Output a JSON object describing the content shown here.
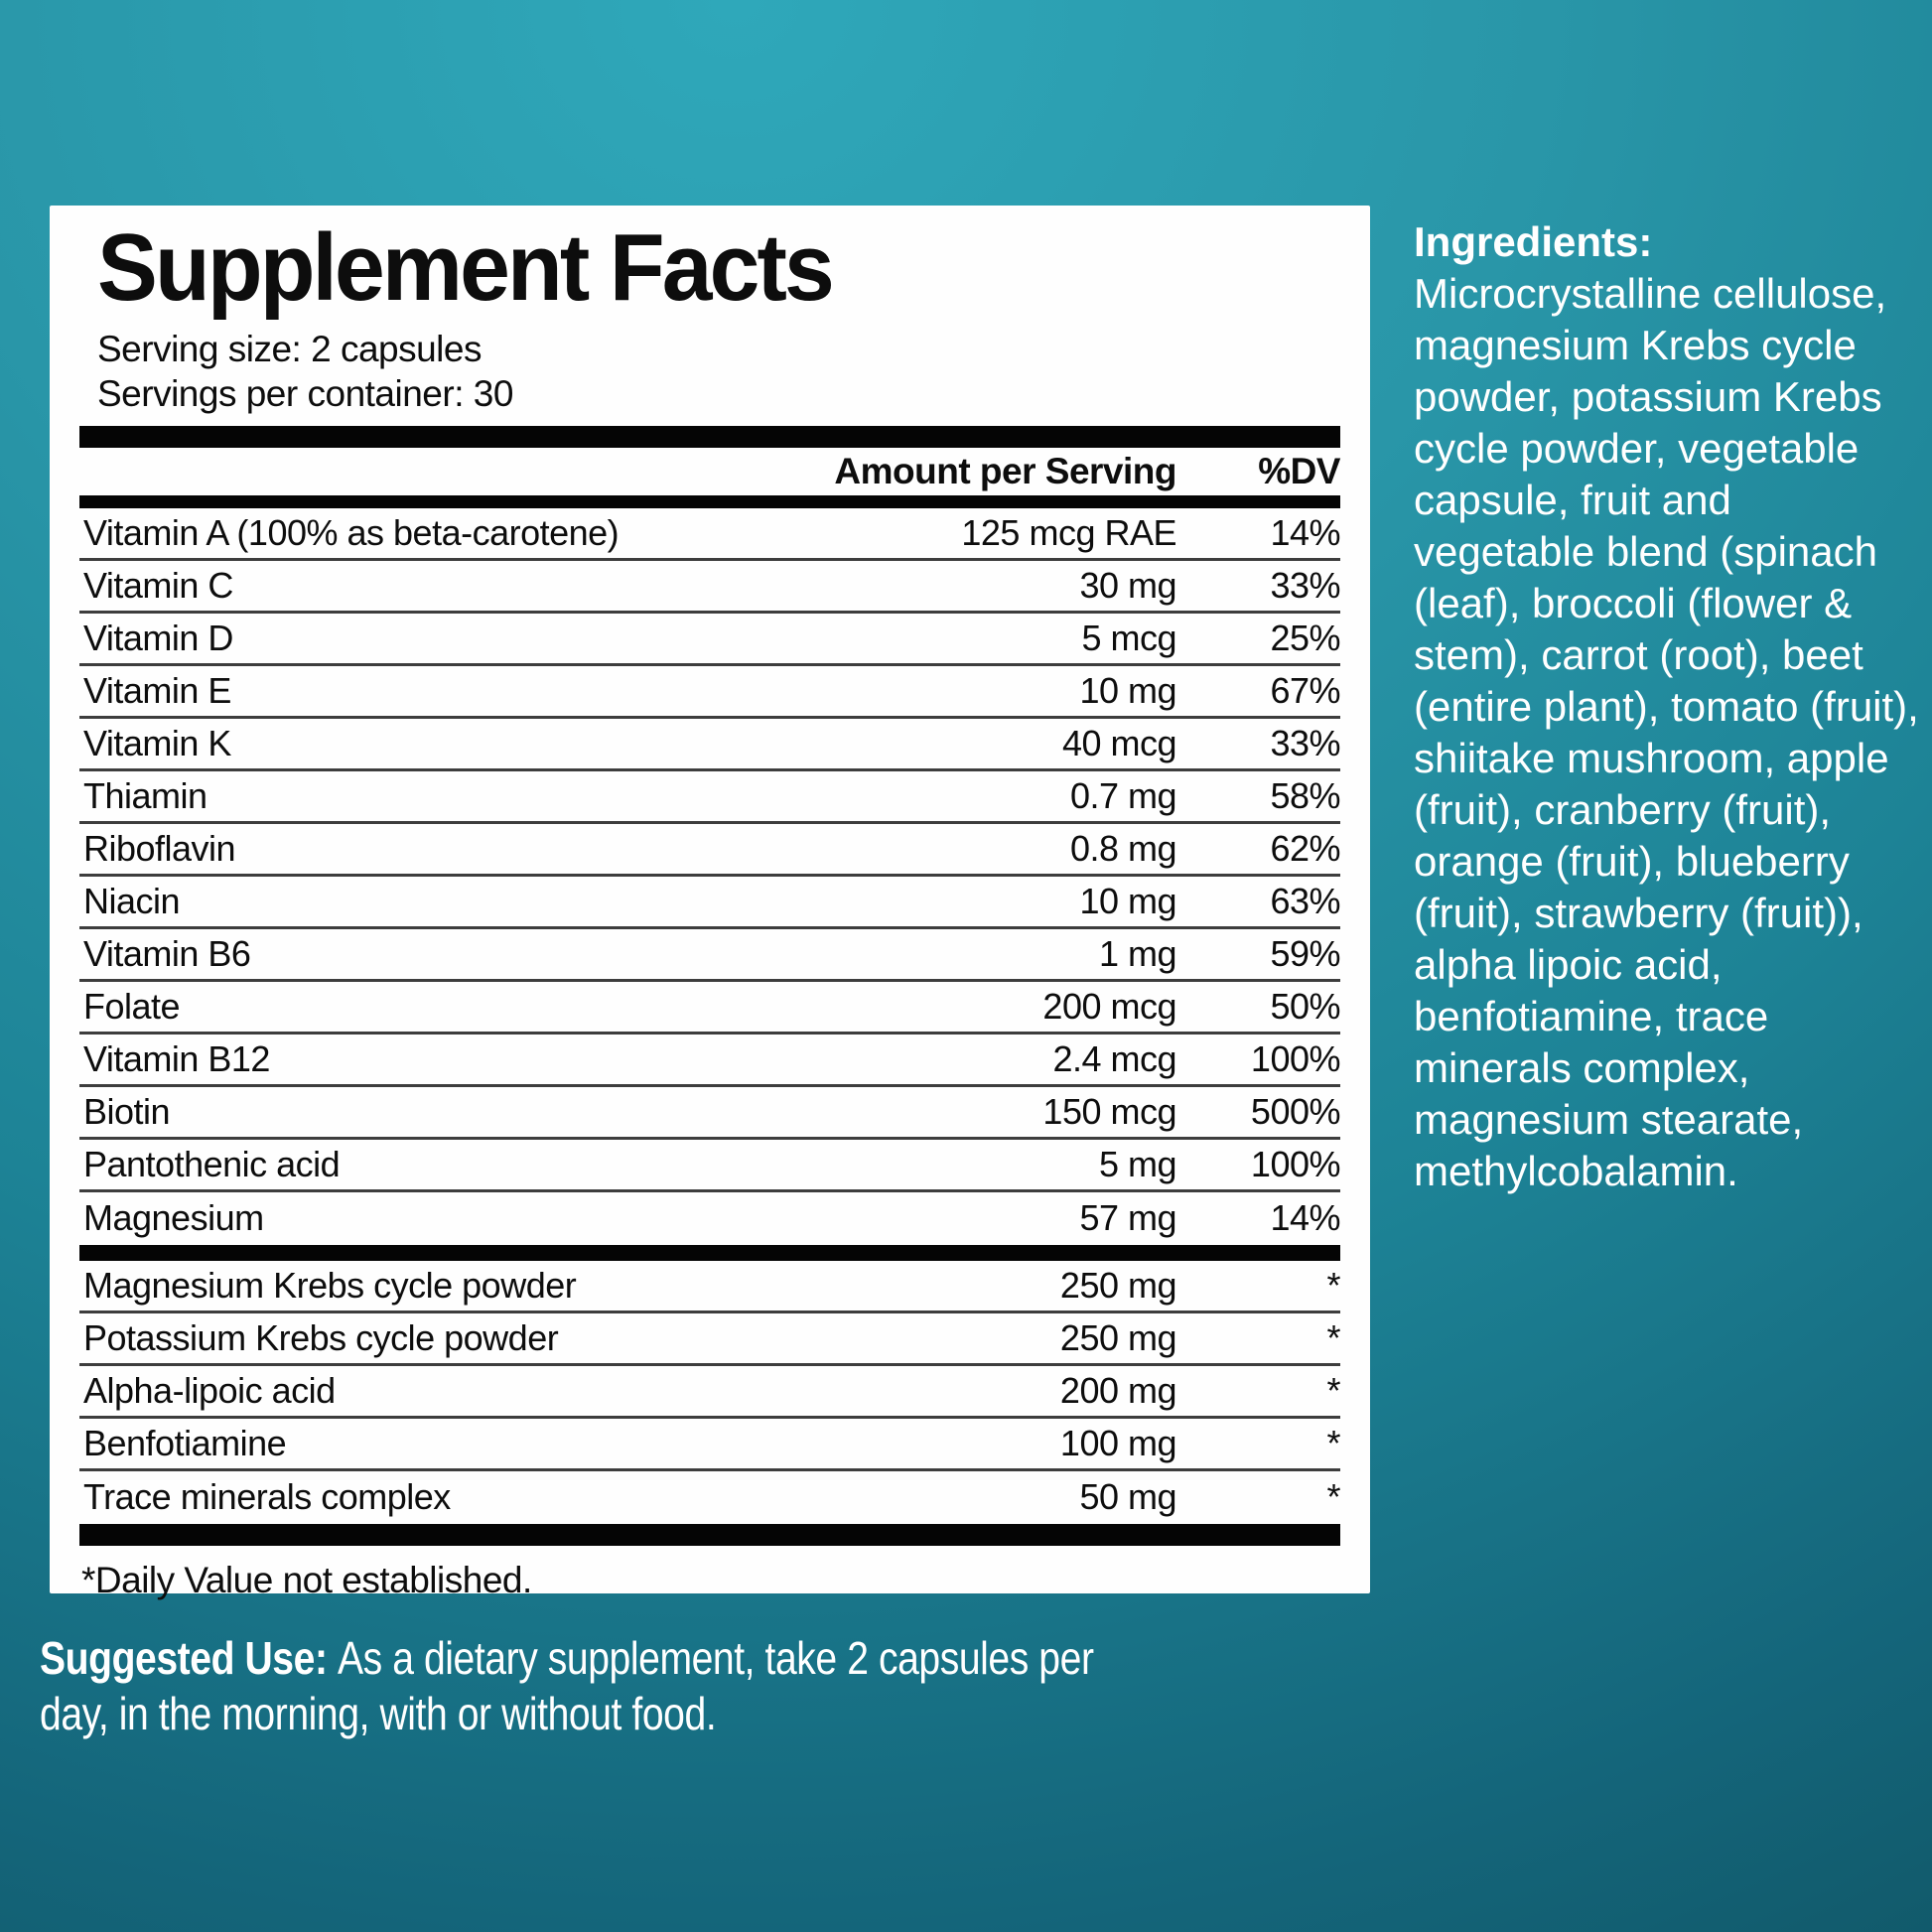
{
  "background": {
    "gradient_top_color": "#2fa8ba",
    "gradient_bottom_color": "#0f5260",
    "panel_color": "#fefefe",
    "text_on_bg_color": "#ffffff"
  },
  "facts_panel": {
    "title": "Supplement Facts",
    "serving_size": "Serving size: 2 capsules",
    "servings_per_container": "Servings per container: 30",
    "header": {
      "amount": "Amount per Serving",
      "dv": "%DV"
    },
    "main_rows": [
      {
        "name": "Vitamin A (100% as beta-carotene)",
        "amount": "125 mcg RAE",
        "dv": "14%"
      },
      {
        "name": "Vitamin C",
        "amount": "30 mg",
        "dv": "33%"
      },
      {
        "name": "Vitamin D",
        "amount": "5 mcg",
        "dv": "25%"
      },
      {
        "name": "Vitamin E",
        "amount": "10 mg",
        "dv": "67%"
      },
      {
        "name": "Vitamin K",
        "amount": "40 mcg",
        "dv": "33%"
      },
      {
        "name": "Thiamin",
        "amount": "0.7 mg",
        "dv": "58%"
      },
      {
        "name": "Riboflavin",
        "amount": "0.8 mg",
        "dv": "62%"
      },
      {
        "name": "Niacin",
        "amount": "10 mg",
        "dv": "63%"
      },
      {
        "name": "Vitamin B6",
        "amount": "1 mg",
        "dv": "59%"
      },
      {
        "name": "Folate",
        "amount": "200 mcg",
        "dv": "50%"
      },
      {
        "name": "Vitamin B12",
        "amount": "2.4 mcg",
        "dv": "100%"
      },
      {
        "name": "Biotin",
        "amount": "150 mcg",
        "dv": "500%"
      },
      {
        "name": "Pantothenic acid",
        "amount": "5 mg",
        "dv": "100%"
      },
      {
        "name": "Magnesium",
        "amount": "57 mg",
        "dv": "14%"
      }
    ],
    "extra_rows": [
      {
        "name": "Magnesium Krebs cycle powder",
        "amount": "250 mg",
        "dv": "*"
      },
      {
        "name": "Potassium Krebs cycle powder",
        "amount": "250 mg",
        "dv": "*"
      },
      {
        "name": "Alpha-lipoic acid",
        "amount": "200 mg",
        "dv": "*"
      },
      {
        "name": "Benfotiamine",
        "amount": "100 mg",
        "dv": "*"
      },
      {
        "name": "Trace minerals complex",
        "amount": "50 mg",
        "dv": "*"
      }
    ],
    "footnote": "*Daily Value not established."
  },
  "ingredients": {
    "title": "Ingredients:",
    "text": "Microcrystalline cellulose, magnesium Krebs cycle powder, potassium Krebs cycle powder, vegetable capsule, fruit and vegetable blend (spinach (leaf), broccoli (flower & stem), carrot (root), beet (entire plant), tomato (fruit), shiitake mushroom, apple (fruit), cranberry (fruit), orange (fruit), blueberry (fruit), strawberry (fruit)), alpha lipoic acid, benfotiamine, trace minerals complex, magnesium stearate, methylcobalamin."
  },
  "suggested_use": {
    "label": "Suggested Use:",
    "text": "As a dietary supplement, take 2 capsules per day, in the morning, with or without food."
  }
}
